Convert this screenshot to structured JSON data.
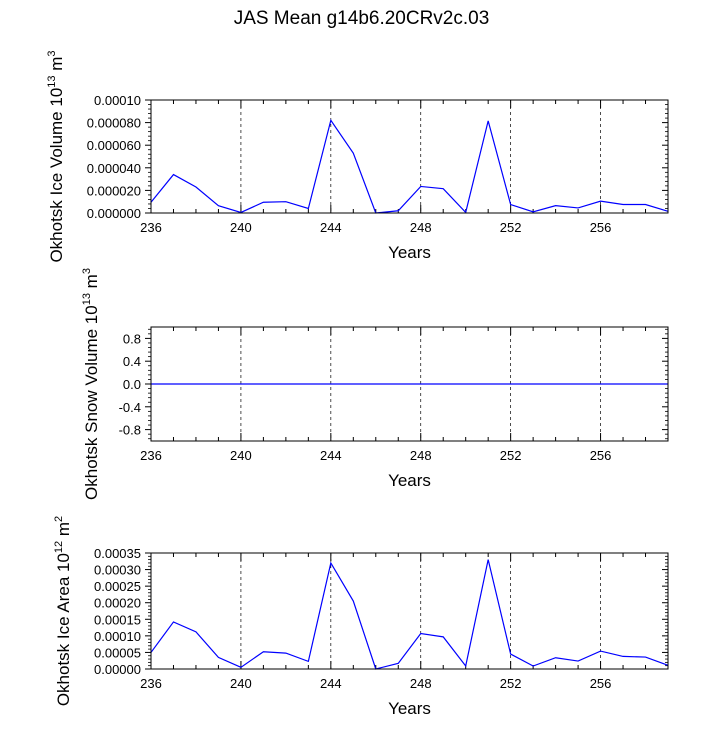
{
  "title": "JAS Mean g14b6.20CRv2c.03",
  "chart_data": [
    {
      "type": "line",
      "ylabel_main": "Okhotsk Ice Volume 10",
      "ylabel_sup": "13",
      "ylabel_unit": "m",
      "ylabel_unit_sup": "3",
      "xlabel": "Years",
      "xlim": [
        236,
        259
      ],
      "ylim": [
        0,
        0.0001
      ],
      "yticks": [
        0.0,
        2e-05,
        4e-05,
        6e-05,
        8e-05,
        0.0001
      ],
      "ytick_labels": [
        "0.000000",
        "0.000020",
        "0.000040",
        "0.000060",
        "0.000080",
        "0.00010"
      ],
      "xticks": [
        236,
        240,
        244,
        248,
        252,
        256
      ],
      "xtick_labels": [
        "236",
        "240",
        "244",
        "248",
        "252",
        "256"
      ],
      "x": [
        236,
        237,
        238,
        239,
        240,
        241,
        242,
        243,
        244,
        245,
        246,
        247,
        248,
        249,
        250,
        251,
        252,
        253,
        254,
        255,
        256,
        257,
        258,
        259
      ],
      "series": [
        {
          "color": "#0000ff",
          "values": [
            9.5e-06,
            3.4e-05,
            2.3e-05,
            6.5e-06,
            5e-07,
            9.5e-06,
            1e-05,
            4e-06,
            8.2e-05,
            5.3e-05,
            0.0,
            2e-06,
            2.35e-05,
            2.15e-05,
            5e-07,
            8.15e-05,
            7.5e-06,
            1e-06,
            6.5e-06,
            4.5e-06,
            1.05e-05,
            7.5e-06,
            7.5e-06,
            1.5e-06
          ]
        }
      ],
      "grid": "dashed vertical at labeled x ticks"
    },
    {
      "type": "line",
      "ylabel_main": "Okhotsk Snow Volume 10",
      "ylabel_sup": "13",
      "ylabel_unit": "m",
      "ylabel_unit_sup": "3",
      "xlabel": "Years",
      "xlim": [
        236,
        259
      ],
      "ylim": [
        -1,
        1
      ],
      "yticks": [
        -0.8,
        -0.4,
        0.0,
        0.4,
        0.8
      ],
      "ytick_labels": [
        "-0.8",
        "-0.4",
        "0.0",
        "0.4",
        "0.8"
      ],
      "xticks": [
        236,
        240,
        244,
        248,
        252,
        256
      ],
      "xtick_labels": [
        "236",
        "240",
        "244",
        "248",
        "252",
        "256"
      ],
      "x": [
        236,
        237,
        238,
        239,
        240,
        241,
        242,
        243,
        244,
        245,
        246,
        247,
        248,
        249,
        250,
        251,
        252,
        253,
        254,
        255,
        256,
        257,
        258,
        259
      ],
      "series": [
        {
          "color": "#0000ff",
          "values": [
            0,
            0,
            0,
            0,
            0,
            0,
            0,
            0,
            0,
            0,
            0,
            0,
            0,
            0,
            0,
            0,
            0,
            0,
            0,
            0,
            0,
            0,
            0,
            0
          ]
        }
      ],
      "grid": "dashed vertical at labeled x ticks"
    },
    {
      "type": "line",
      "ylabel_main": "Okhotsk Ice Area 10",
      "ylabel_sup": "12",
      "ylabel_unit": "m",
      "ylabel_unit_sup": "2",
      "xlabel": "Years",
      "xlim": [
        236,
        259
      ],
      "ylim": [
        0,
        0.00035
      ],
      "yticks": [
        0.0,
        5e-05,
        0.0001,
        0.00015,
        0.0002,
        0.00025,
        0.0003,
        0.00035
      ],
      "ytick_labels": [
        "0.00000",
        "0.00005",
        "0.00010",
        "0.00015",
        "0.00020",
        "0.00025",
        "0.00030",
        "0.00035"
      ],
      "xticks": [
        236,
        240,
        244,
        248,
        252,
        256
      ],
      "xtick_labels": [
        "236",
        "240",
        "244",
        "248",
        "252",
        "256"
      ],
      "x": [
        236,
        237,
        238,
        239,
        240,
        241,
        242,
        243,
        244,
        245,
        246,
        247,
        248,
        249,
        250,
        251,
        252,
        253,
        254,
        255,
        256,
        257,
        258,
        259
      ],
      "series": [
        {
          "color": "#0000ff",
          "values": [
            5e-05,
            0.000142,
            0.000112,
            3.5e-05,
            5e-06,
            5.2e-05,
            4.8e-05,
            2.3e-05,
            0.00032,
            0.000205,
            0.0,
            1.7e-05,
            0.000107,
            9.7e-05,
            9e-06,
            0.00033,
            4.5e-05,
            9e-06,
            3.4e-05,
            2.4e-05,
            5.4e-05,
            3.8e-05,
            3.6e-05,
            1.1e-05
          ]
        }
      ],
      "grid": "dashed vertical at labeled x ticks"
    }
  ]
}
